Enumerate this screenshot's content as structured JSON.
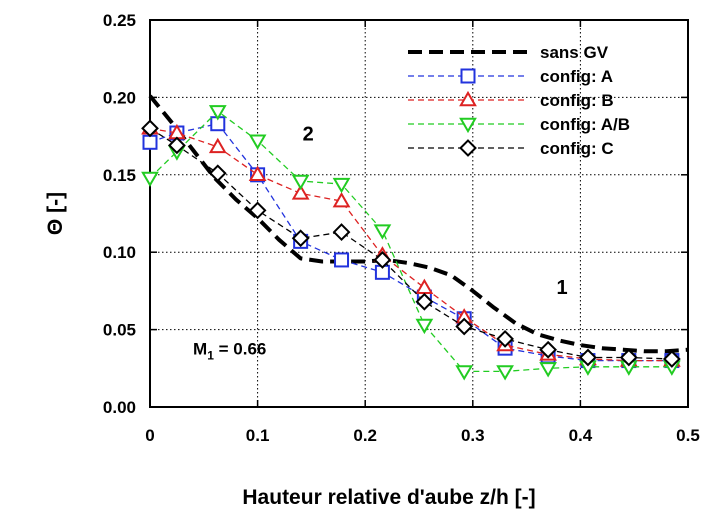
{
  "chart_data": {
    "type": "line",
    "xlabel": "Hauteur relative d'aube  z/h [-]",
    "ylabel": "Θ [-]",
    "xlim": [
      0,
      0.5
    ],
    "ylim": [
      0,
      0.25
    ],
    "xticks": [
      0,
      0.1,
      0.2,
      0.3,
      0.4,
      0.5
    ],
    "xtick_labels": [
      "0",
      "0.1",
      "0.2",
      "0.3",
      "0.4",
      "0.5"
    ],
    "yticks": [
      0,
      0.05,
      0.1,
      0.15,
      0.2,
      0.25
    ],
    "ytick_labels": [
      "0.00",
      "0.05",
      "0.10",
      "0.15",
      "0.20",
      "0.25"
    ],
    "grid": true,
    "legend_position": "top-right",
    "series": [
      {
        "name": "sans GV",
        "color": "#000000",
        "marker": "none",
        "line": "thick-dashed",
        "x": [
          0,
          0.02,
          0.04,
          0.06,
          0.08,
          0.1,
          0.12,
          0.14,
          0.16,
          0.18,
          0.2,
          0.22,
          0.24,
          0.26,
          0.28,
          0.3,
          0.32,
          0.34,
          0.36,
          0.38,
          0.4,
          0.42,
          0.44,
          0.46,
          0.48,
          0.5
        ],
        "y": [
          0.201,
          0.184,
          0.166,
          0.148,
          0.134,
          0.122,
          0.108,
          0.096,
          0.094,
          0.094,
          0.094,
          0.095,
          0.093,
          0.09,
          0.085,
          0.075,
          0.064,
          0.054,
          0.047,
          0.043,
          0.04,
          0.038,
          0.037,
          0.036,
          0.036,
          0.037
        ]
      },
      {
        "name": "config: A",
        "color": "#2233dd",
        "marker": "square",
        "line": "dashed",
        "x": [
          0,
          0.025,
          0.063,
          0.1,
          0.14,
          0.178,
          0.216,
          0.255,
          0.292,
          0.33,
          0.37,
          0.407,
          0.445,
          0.485
        ],
        "y": [
          0.171,
          0.177,
          0.183,
          0.15,
          0.107,
          0.095,
          0.087,
          0.071,
          0.057,
          0.038,
          0.033,
          0.03,
          0.03,
          0.03
        ]
      },
      {
        "name": "config: B",
        "color": "#dd2222",
        "marker": "triangle-up",
        "line": "dashed",
        "x": [
          0,
          0.025,
          0.063,
          0.1,
          0.14,
          0.178,
          0.216,
          0.255,
          0.292,
          0.33,
          0.37,
          0.407,
          0.445,
          0.485
        ],
        "y": [
          0.18,
          0.177,
          0.168,
          0.15,
          0.138,
          0.133,
          0.098,
          0.077,
          0.058,
          0.04,
          0.034,
          0.031,
          0.03,
          0.03
        ]
      },
      {
        "name": "config: A/B",
        "color": "#22cc22",
        "marker": "triangle-down",
        "line": "dashed",
        "x": [
          0,
          0.025,
          0.063,
          0.1,
          0.14,
          0.178,
          0.216,
          0.255,
          0.292,
          0.33,
          0.37,
          0.407,
          0.445,
          0.485
        ],
        "y": [
          0.148,
          0.165,
          0.191,
          0.172,
          0.146,
          0.144,
          0.114,
          0.053,
          0.023,
          0.023,
          0.025,
          0.026,
          0.026,
          0.026
        ]
      },
      {
        "name": "config: C",
        "color": "#000000",
        "marker": "diamond",
        "line": "dashed",
        "x": [
          0,
          0.025,
          0.063,
          0.1,
          0.14,
          0.178,
          0.216,
          0.255,
          0.292,
          0.33,
          0.37,
          0.407,
          0.445,
          0.485
        ],
        "y": [
          0.18,
          0.169,
          0.151,
          0.127,
          0.109,
          0.113,
          0.095,
          0.068,
          0.052,
          0.044,
          0.037,
          0.032,
          0.032,
          0.031
        ]
      }
    ],
    "annotations": [
      {
        "text": "2",
        "x": 0.147,
        "y": 0.172,
        "style": "large"
      },
      {
        "text": "1",
        "x": 0.383,
        "y": 0.073,
        "style": "large"
      }
    ],
    "mach_label": {
      "symbol": "M",
      "subscript": "1",
      "value": " = 0.66",
      "x": 0.04,
      "y": 0.034
    }
  }
}
